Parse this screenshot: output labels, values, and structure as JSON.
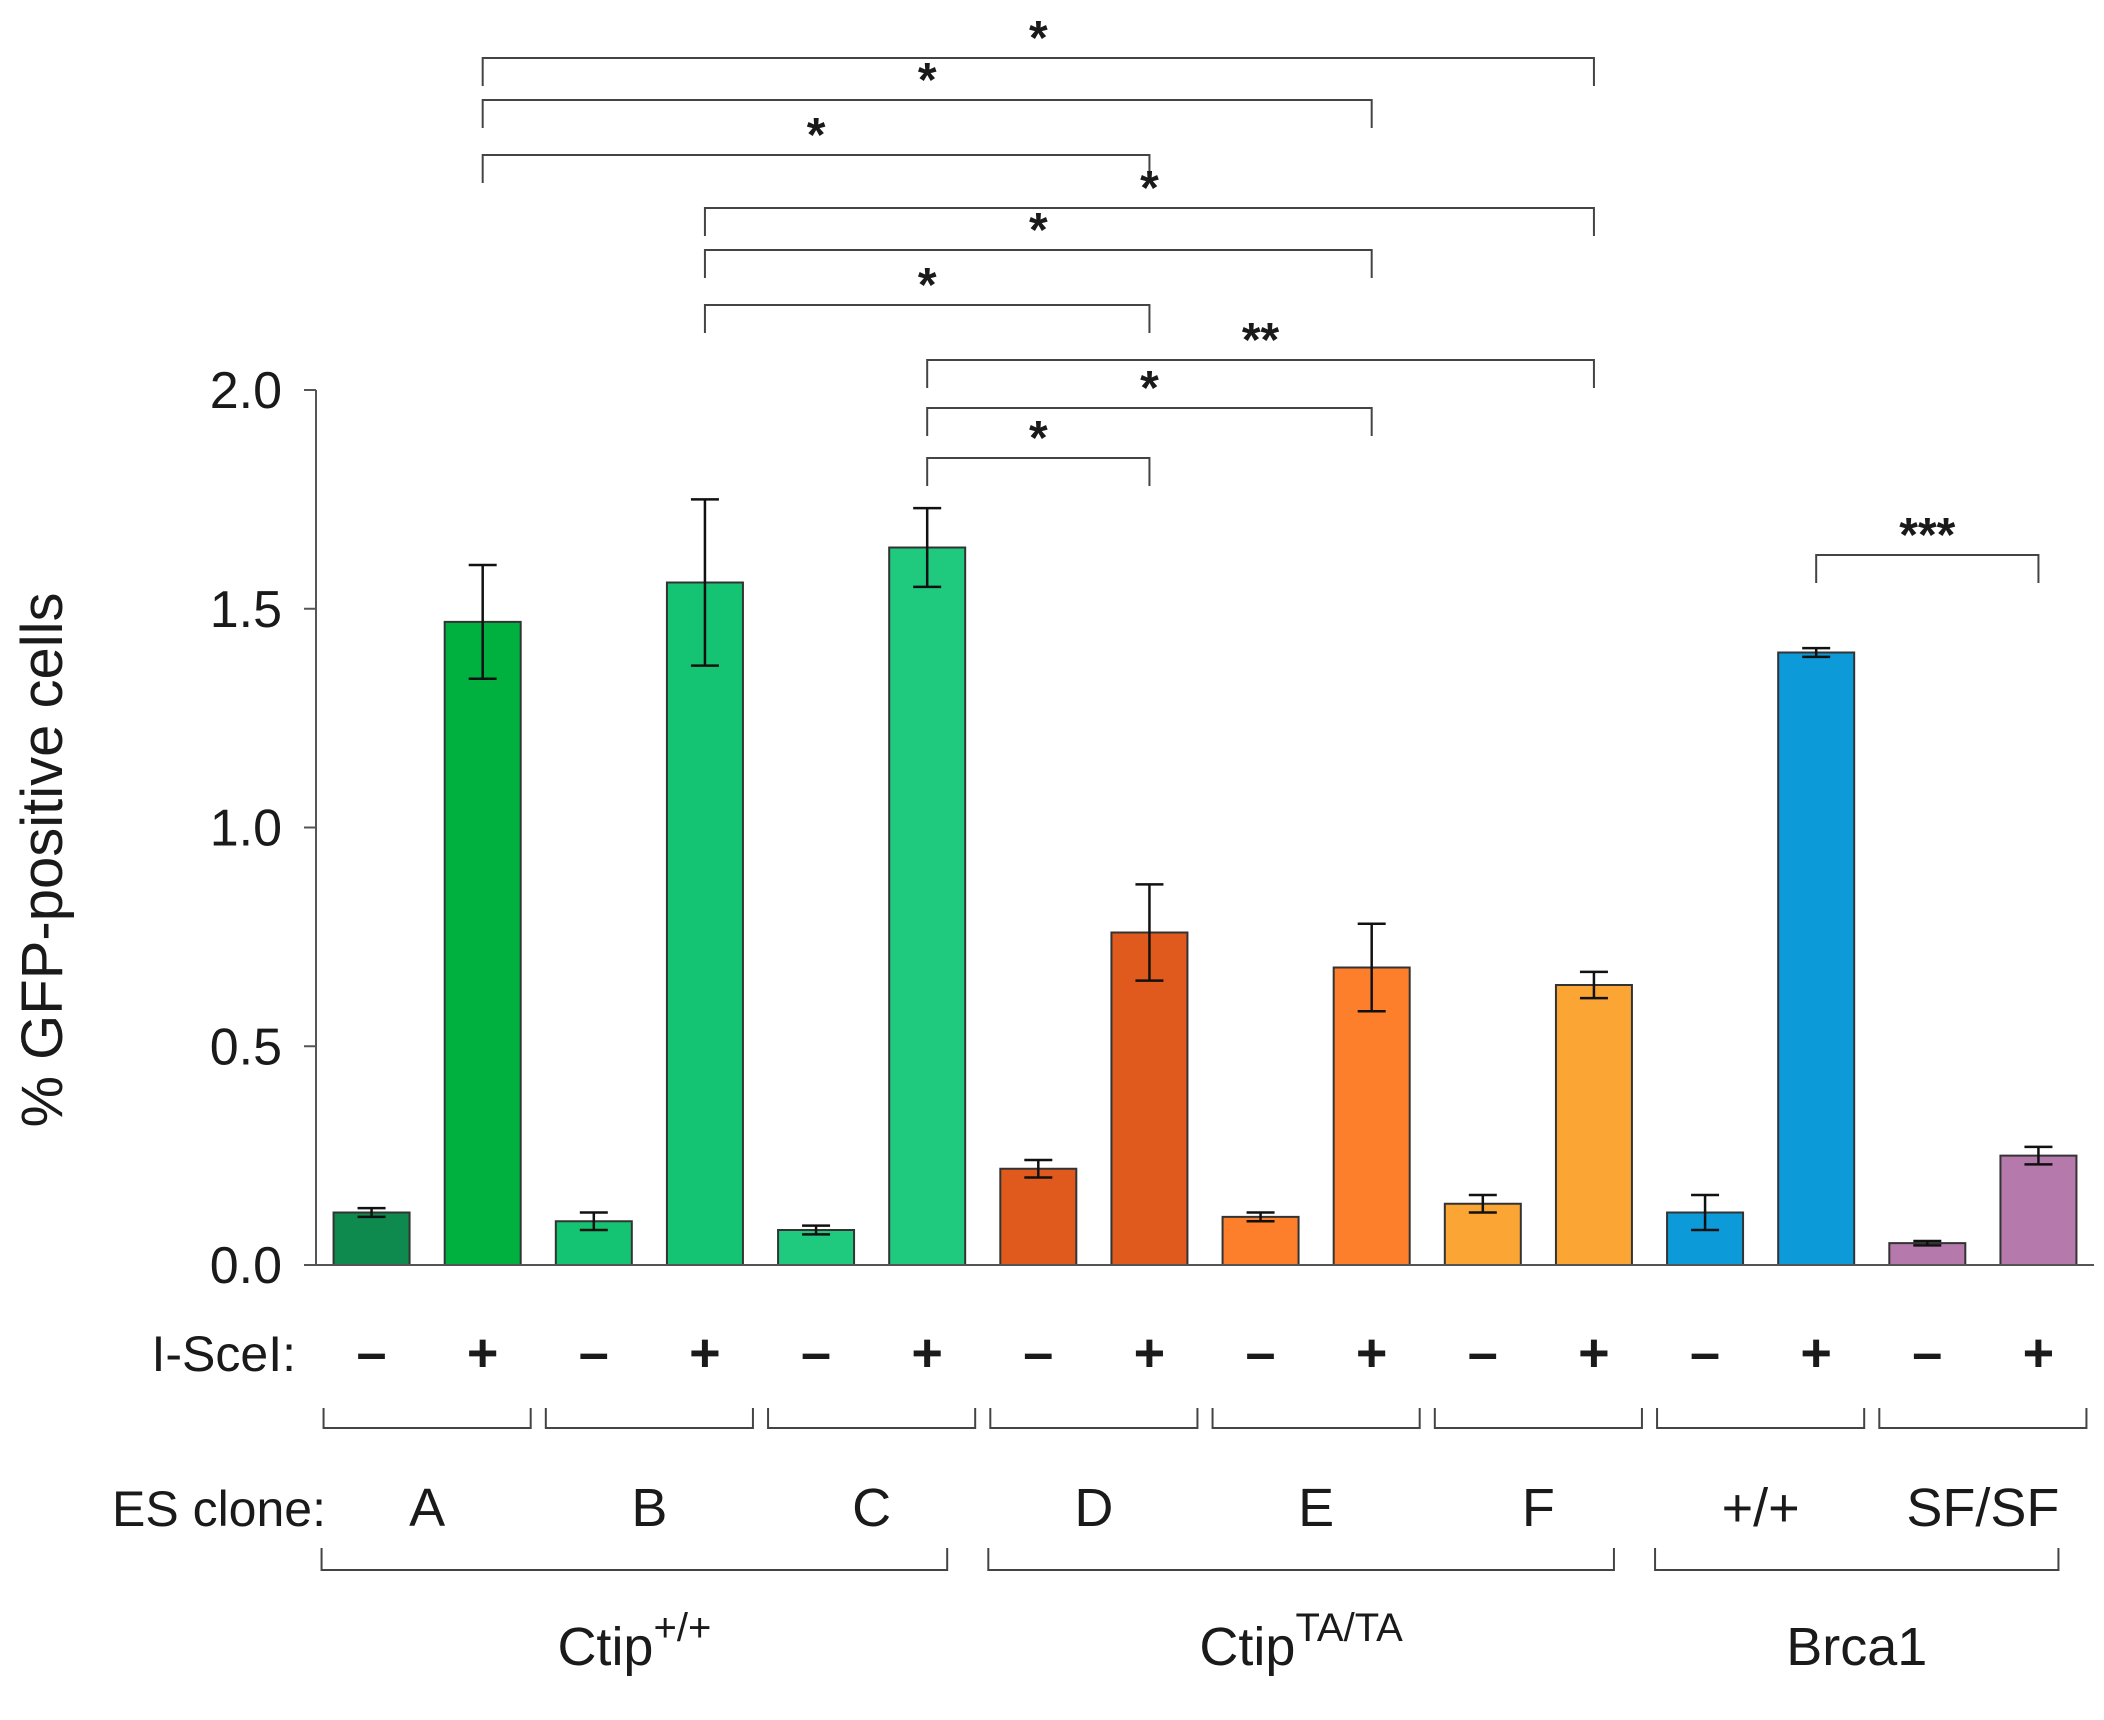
{
  "chart_data": {
    "type": "bar",
    "ylabel": "% GFP-positive cells",
    "ylim": [
      0,
      2.0
    ],
    "yticks": [
      "0.0",
      "0.5",
      "1.0",
      "1.5",
      "2.0"
    ],
    "treatment_label": "I-SceI:",
    "clone_label": "ES clone:",
    "categories": [
      "A -",
      "A +",
      "B -",
      "B +",
      "C -",
      "C +",
      "D -",
      "D +",
      "E -",
      "E +",
      "F -",
      "F +",
      "+/+ -",
      "+/+ +",
      "SF/SF -",
      "SF/SF +"
    ],
    "bars": [
      {
        "treatment": "–",
        "value": 0.12,
        "error": 0.01,
        "color": "#0e8a4e"
      },
      {
        "treatment": "+",
        "value": 1.47,
        "error": 0.13,
        "color": "#00b140"
      },
      {
        "treatment": "–",
        "value": 0.1,
        "error": 0.02,
        "color": "#14c472"
      },
      {
        "treatment": "+",
        "value": 1.56,
        "error": 0.19,
        "color": "#14c472"
      },
      {
        "treatment": "–",
        "value": 0.08,
        "error": 0.01,
        "color": "#1fc97e"
      },
      {
        "treatment": "+",
        "value": 1.64,
        "error": 0.09,
        "color": "#1fc97e"
      },
      {
        "treatment": "–",
        "value": 0.22,
        "error": 0.02,
        "color": "#e05a1e"
      },
      {
        "treatment": "+",
        "value": 0.76,
        "error": 0.11,
        "color": "#e05a1e"
      },
      {
        "treatment": "–",
        "value": 0.11,
        "error": 0.01,
        "color": "#fd7f2c"
      },
      {
        "treatment": "+",
        "value": 0.68,
        "error": 0.1,
        "color": "#fd7f2c"
      },
      {
        "treatment": "–",
        "value": 0.14,
        "error": 0.02,
        "color": "#fba534"
      },
      {
        "treatment": "+",
        "value": 0.64,
        "error": 0.03,
        "color": "#fba534"
      },
      {
        "treatment": "–",
        "value": 0.12,
        "error": 0.04,
        "color": "#0d9ad8"
      },
      {
        "treatment": "+",
        "value": 1.4,
        "error": 0.01,
        "color": "#0d9ad8"
      },
      {
        "treatment": "–",
        "value": 0.05,
        "error": 0.005,
        "color": "#b57aab"
      },
      {
        "treatment": "+",
        "value": 0.25,
        "error": 0.02,
        "color": "#b57aab"
      }
    ],
    "clones": [
      {
        "label": "A",
        "first_bar": 0
      },
      {
        "label": "B",
        "first_bar": 2
      },
      {
        "label": "C",
        "first_bar": 4
      },
      {
        "label": "D",
        "first_bar": 6
      },
      {
        "label": "E",
        "first_bar": 8
      },
      {
        "label": "F",
        "first_bar": 10
      },
      {
        "label": "+/+",
        "first_bar": 12
      },
      {
        "label": "SF/SF",
        "first_bar": 14
      }
    ],
    "genotypes": [
      {
        "base": "Ctip",
        "sup": "+/+",
        "first_clone": 0,
        "last_clone": 2
      },
      {
        "base": "Ctip",
        "sup": "TA/TA",
        "first_clone": 3,
        "last_clone": 5
      },
      {
        "base": "Brca1",
        "sup": "",
        "first_clone": 6,
        "last_clone": 7
      }
    ],
    "significance": [
      {
        "from_bar": 1,
        "to_bar": 11,
        "label": "*"
      },
      {
        "from_bar": 1,
        "to_bar": 9,
        "label": "*"
      },
      {
        "from_bar": 1,
        "to_bar": 7,
        "label": "*"
      },
      {
        "from_bar": 3,
        "to_bar": 11,
        "label": "*"
      },
      {
        "from_bar": 3,
        "to_bar": 9,
        "label": "*"
      },
      {
        "from_bar": 3,
        "to_bar": 7,
        "label": "*"
      },
      {
        "from_bar": 5,
        "to_bar": 11,
        "label": "**"
      },
      {
        "from_bar": 5,
        "to_bar": 9,
        "label": "*"
      },
      {
        "from_bar": 5,
        "to_bar": 7,
        "label": "*"
      },
      {
        "from_bar": 13,
        "to_bar": 15,
        "label": "***"
      }
    ]
  }
}
